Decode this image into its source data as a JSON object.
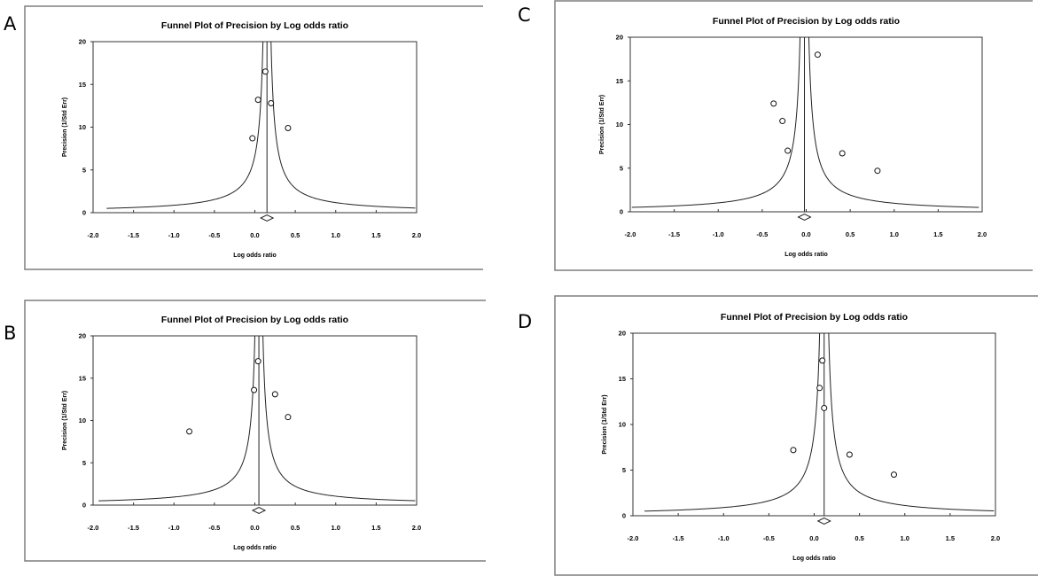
{
  "figure": {
    "panels": [
      "A",
      "B",
      "C",
      "D"
    ]
  },
  "chart_data": [
    {
      "panel_label": "A",
      "type": "scatter",
      "title": "Funnel Plot of Precision by Log odds ratio",
      "xlabel": "Log odds ratio",
      "ylabel": "Precision (1/Std Err)",
      "xlim": [
        -2.0,
        2.0
      ],
      "ylim": [
        0,
        20
      ],
      "xticks": [
        "-2.0",
        "-1.5",
        "-1.0",
        "-0.5",
        "0.0",
        "0.5",
        "1.0",
        "1.5",
        "2.0"
      ],
      "yticks": [
        "0",
        "5",
        "10",
        "15",
        "20"
      ],
      "pooled_estimate": 0.15,
      "points": [
        {
          "x": 0.13,
          "y": 16.5
        },
        {
          "x": 0.04,
          "y": 13.2
        },
        {
          "x": 0.2,
          "y": 12.8
        },
        {
          "x": 0.41,
          "y": 9.9
        },
        {
          "x": -0.03,
          "y": 8.7
        }
      ],
      "grid": false
    },
    {
      "panel_label": "B",
      "type": "scatter",
      "title": "Funnel Plot of Precision by Log odds ratio",
      "xlabel": "Log odds ratio",
      "ylabel": "Precision (1/Std Err)",
      "xlim": [
        -2.0,
        2.0
      ],
      "ylim": [
        0,
        20
      ],
      "xticks": [
        "-2.0",
        "-1.5",
        "-1.0",
        "-0.5",
        "0.0",
        "0.5",
        "1.0",
        "1.5",
        "2.0"
      ],
      "yticks": [
        "0",
        "5",
        "10",
        "15",
        "20"
      ],
      "pooled_estimate": 0.05,
      "points": [
        {
          "x": 0.04,
          "y": 17.0
        },
        {
          "x": -0.01,
          "y": 13.6
        },
        {
          "x": 0.25,
          "y": 13.1
        },
        {
          "x": 0.41,
          "y": 10.4
        },
        {
          "x": -0.81,
          "y": 8.7
        }
      ],
      "grid": false
    },
    {
      "panel_label": "C",
      "type": "scatter",
      "title": "Funnel Plot of Precision by Log odds ratio",
      "xlabel": "Log odds ratio",
      "ylabel": "Precision (1/Std Err)",
      "xlim": [
        -2.0,
        2.0
      ],
      "ylim": [
        0,
        20
      ],
      "xticks": [
        "-2.0",
        "-1.5",
        "-1.0",
        "-0.5",
        "0.0",
        "0.5",
        "1.0",
        "1.5",
        "2.0"
      ],
      "yticks": [
        "0",
        "5",
        "10",
        "15",
        "20"
      ],
      "pooled_estimate": -0.02,
      "points": [
        {
          "x": 0.13,
          "y": 18.0
        },
        {
          "x": -0.37,
          "y": 12.4
        },
        {
          "x": -0.27,
          "y": 10.4
        },
        {
          "x": -0.21,
          "y": 7.0
        },
        {
          "x": 0.41,
          "y": 6.7
        },
        {
          "x": 0.81,
          "y": 4.7
        }
      ],
      "grid": false
    },
    {
      "panel_label": "D",
      "type": "scatter",
      "title": "Funnel Plot of Precision by Log odds ratio",
      "xlabel": "Log odds ratio",
      "ylabel": "Precision (1/Std Err)",
      "xlim": [
        -2.0,
        2.0
      ],
      "ylim": [
        0,
        20
      ],
      "xticks": [
        "-2.0",
        "-1.5",
        "-1.0",
        "-0.5",
        "0.0",
        "0.5",
        "1.0",
        "1.5",
        "2.0"
      ],
      "yticks": [
        "0",
        "5",
        "10",
        "15",
        "20"
      ],
      "pooled_estimate": 0.11,
      "points": [
        {
          "x": 0.09,
          "y": 17.0
        },
        {
          "x": 0.06,
          "y": 14.0
        },
        {
          "x": 0.11,
          "y": 11.8
        },
        {
          "x": -0.23,
          "y": 7.2
        },
        {
          "x": 0.39,
          "y": 6.7
        },
        {
          "x": 0.88,
          "y": 4.5
        }
      ],
      "grid": false
    }
  ]
}
